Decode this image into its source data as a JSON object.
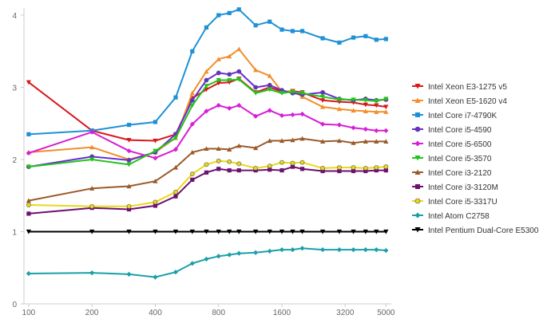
{
  "chart_data": {
    "type": "line",
    "title": "",
    "xlabel": "",
    "ylabel": "",
    "xscale": "log",
    "x_ticks": [
      100,
      200,
      400,
      800,
      1600,
      3200,
      5000
    ],
    "x_tick_labels": [
      "100",
      "200",
      "400",
      "800",
      "1600",
      "3200",
      "5000"
    ],
    "y_ticks": [
      0,
      1,
      2,
      3,
      4
    ],
    "y_tick_labels": [
      "0",
      "1",
      "2",
      "3",
      "4"
    ],
    "ylim": [
      0,
      4.1
    ],
    "xlim": [
      95,
      5300
    ],
    "legend_position": "right",
    "x": [
      100,
      200,
      300,
      400,
      500,
      600,
      700,
      800,
      900,
      1000,
      1200,
      1400,
      1600,
      1800,
      2000,
      2500,
      3000,
      3500,
      4000,
      4500,
      5000
    ],
    "series": [
      {
        "name": "Intel Xeon E3-1275 v5",
        "color": "#d7191c",
        "marker": "triangle-down",
        "values": [
          3.07,
          2.4,
          2.27,
          2.26,
          2.35,
          2.85,
          2.97,
          3.06,
          3.07,
          3.12,
          2.93,
          3.0,
          2.94,
          2.95,
          2.93,
          2.82,
          2.8,
          2.79,
          2.76,
          2.75,
          2.73
        ]
      },
      {
        "name": "Intel Xeon E5-1620 v4",
        "color": "#f28e2b",
        "marker": "triangle-up",
        "values": [
          2.1,
          2.17,
          2.0,
          2.1,
          2.3,
          2.92,
          3.22,
          3.39,
          3.43,
          3.53,
          3.24,
          3.16,
          2.94,
          2.95,
          2.87,
          2.73,
          2.7,
          2.68,
          2.67,
          2.66,
          2.66
        ]
      },
      {
        "name": "Intel Core i7-4790K",
        "color": "#1e90d6",
        "marker": "square",
        "values": [
          2.35,
          2.4,
          2.48,
          2.52,
          2.86,
          3.5,
          3.83,
          4.0,
          4.03,
          4.08,
          3.86,
          3.91,
          3.8,
          3.78,
          3.78,
          3.68,
          3.62,
          3.69,
          3.71,
          3.66,
          3.67
        ]
      },
      {
        "name": "Intel Core i5-4590",
        "color": "#6a2bd6",
        "marker": "circle",
        "values": [
          1.9,
          2.04,
          1.99,
          2.1,
          2.35,
          2.82,
          3.1,
          3.2,
          3.18,
          3.22,
          3.0,
          3.03,
          2.96,
          2.92,
          2.9,
          2.93,
          2.84,
          2.82,
          2.84,
          2.82,
          2.83
        ]
      },
      {
        "name": "Intel Core i5-6500",
        "color": "#d61ed6",
        "marker": "diamond",
        "values": [
          2.09,
          2.38,
          2.12,
          2.02,
          2.14,
          2.49,
          2.67,
          2.75,
          2.71,
          2.75,
          2.6,
          2.68,
          2.61,
          2.62,
          2.63,
          2.49,
          2.48,
          2.44,
          2.42,
          2.4,
          2.4
        ]
      },
      {
        "name": "Intel Core i5-3570",
        "color": "#22c41c",
        "marker": "triangle-down",
        "values": [
          1.9,
          2.0,
          1.93,
          2.12,
          2.3,
          2.75,
          3.02,
          3.1,
          3.1,
          3.11,
          2.92,
          2.97,
          2.92,
          2.94,
          2.92,
          2.87,
          2.83,
          2.83,
          2.82,
          2.81,
          2.84
        ]
      },
      {
        "name": "Intel Core i3-2120",
        "color": "#9a5a2a",
        "marker": "triangle-up",
        "values": [
          1.43,
          1.6,
          1.63,
          1.7,
          1.89,
          2.1,
          2.15,
          2.15,
          2.14,
          2.19,
          2.16,
          2.26,
          2.26,
          2.27,
          2.29,
          2.25,
          2.26,
          2.23,
          2.25,
          2.25,
          2.25
        ]
      },
      {
        "name": "Intel Core i3-3120M",
        "color": "#6e1070",
        "marker": "square",
        "values": [
          1.25,
          1.33,
          1.31,
          1.36,
          1.49,
          1.72,
          1.82,
          1.87,
          1.85,
          1.85,
          1.85,
          1.86,
          1.85,
          1.9,
          1.87,
          1.84,
          1.84,
          1.84,
          1.84,
          1.85,
          1.85
        ]
      },
      {
        "name": "Intel Core i5-3317U",
        "color": "#e8d81a",
        "marker": "circle",
        "values": [
          1.37,
          1.35,
          1.35,
          1.41,
          1.55,
          1.8,
          1.93,
          1.98,
          1.97,
          1.94,
          1.88,
          1.91,
          1.96,
          1.95,
          1.96,
          1.88,
          1.89,
          1.89,
          1.88,
          1.89,
          1.9
        ]
      },
      {
        "name": "Intel Atom C2758",
        "color": "#1aa0a8",
        "marker": "diamond",
        "values": [
          0.42,
          0.43,
          0.41,
          0.37,
          0.44,
          0.56,
          0.62,
          0.66,
          0.68,
          0.7,
          0.71,
          0.73,
          0.75,
          0.75,
          0.77,
          0.75,
          0.75,
          0.75,
          0.75,
          0.75,
          0.74
        ]
      },
      {
        "name": "Intel Pentium Dual-Core E5300",
        "color": "#000000",
        "marker": "triangle-down",
        "values": [
          1.0,
          1.0,
          1.0,
          1.0,
          1.0,
          1.0,
          1.0,
          1.0,
          1.0,
          1.0,
          1.0,
          1.0,
          1.0,
          1.0,
          1.0,
          1.0,
          1.0,
          1.0,
          1.0,
          1.0,
          1.0
        ]
      }
    ]
  },
  "colors": {
    "axis": "#cccccc",
    "tick_text": "#666666",
    "legend_text": "#333333",
    "background": "#ffffff"
  }
}
